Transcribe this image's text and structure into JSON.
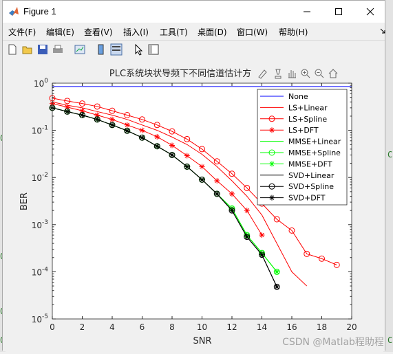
{
  "window": {
    "title": "Figure 1"
  },
  "menu": [
    "文件(F)",
    "编辑(E)",
    "查看(V)",
    "插入(I)",
    "工具(T)",
    "桌面(D)",
    "窗口(W)",
    "帮助(H)"
  ],
  "background_snippets": [
    "0",
    "0",
    "0",
    "0",
    "C",
    "C"
  ],
  "watermark": "CSDN @Matlab程助程",
  "chart_data": {
    "type": "line",
    "title": "PLC系统块状导频下不同信道估计方",
    "xlabel": "SNR",
    "ylabel": "BER",
    "xlim": [
      0,
      20
    ],
    "ylim": [
      1e-05,
      1
    ],
    "yscale": "log",
    "xticks": [
      "0",
      "2",
      "4",
      "6",
      "8",
      "10",
      "12",
      "14",
      "16",
      "18",
      "20"
    ],
    "yticks": [
      "10^0",
      "10^-1",
      "10^-2",
      "10^-3",
      "10^-4",
      "10^-5"
    ],
    "grid": false,
    "legend_position": "top-right",
    "series": [
      {
        "name": "None",
        "color": "#0000ff",
        "marker": "none",
        "x": [
          0,
          1,
          2,
          3,
          4,
          5,
          6,
          7,
          8,
          9,
          10,
          11,
          12,
          13,
          14,
          15,
          16,
          17,
          18,
          19,
          20
        ],
        "y": [
          0.85,
          0.85,
          0.85,
          0.85,
          0.85,
          0.85,
          0.85,
          0.85,
          0.85,
          0.85,
          0.85,
          0.85,
          0.85,
          0.85,
          0.85,
          0.85,
          0.85,
          0.85,
          0.85,
          0.85,
          0.85
        ]
      },
      {
        "name": "LS+Linear",
        "color": "#ff0000",
        "marker": "none",
        "x": [
          0,
          1,
          2,
          3,
          4,
          5,
          6,
          7,
          8,
          9,
          10,
          11,
          12,
          13,
          14,
          15,
          16,
          17
        ],
        "y": [
          0.4,
          0.34,
          0.3,
          0.25,
          0.21,
          0.17,
          0.13,
          0.1,
          0.072,
          0.05,
          0.031,
          0.017,
          0.0085,
          0.004,
          0.0016,
          0.0004,
          0.0001,
          5e-05
        ]
      },
      {
        "name": "LS+Spline",
        "color": "#ff0000",
        "marker": "o",
        "x": [
          0,
          1,
          2,
          3,
          4,
          5,
          6,
          7,
          8,
          9,
          10,
          11,
          12,
          13,
          14,
          15,
          16,
          17,
          18,
          19
        ],
        "y": [
          0.48,
          0.42,
          0.37,
          0.32,
          0.26,
          0.21,
          0.17,
          0.13,
          0.095,
          0.065,
          0.04,
          0.022,
          0.012,
          0.006,
          0.0028,
          0.0013,
          0.00075,
          0.00024,
          0.00019,
          0.00014
        ]
      },
      {
        "name": "LS+DFT",
        "color": "#ff0000",
        "marker": "*",
        "x": [
          0,
          1,
          2,
          3,
          4,
          5,
          6,
          7,
          8,
          9,
          10,
          11,
          12,
          13,
          14
        ],
        "y": [
          0.37,
          0.31,
          0.26,
          0.21,
          0.17,
          0.13,
          0.1,
          0.073,
          0.048,
          0.029,
          0.017,
          0.0085,
          0.0045,
          0.002,
          0.0006
        ]
      },
      {
        "name": "MMSE+Linear",
        "color": "#00ff00",
        "marker": "none",
        "x": [
          0,
          1,
          2,
          3,
          4,
          5,
          6,
          7,
          8,
          9,
          10,
          11,
          12,
          13,
          14,
          15
        ],
        "y": [
          0.3,
          0.25,
          0.21,
          0.17,
          0.13,
          0.098,
          0.07,
          0.046,
          0.03,
          0.017,
          0.009,
          0.0045,
          0.0022,
          0.0006,
          0.00025,
          0.0001
        ]
      },
      {
        "name": "MMSE+Spline",
        "color": "#00ff00",
        "marker": "o",
        "x": [
          0,
          1,
          2,
          3,
          4,
          5,
          6,
          7,
          8,
          9,
          10,
          11,
          12,
          13,
          14,
          15
        ],
        "y": [
          0.3,
          0.25,
          0.21,
          0.17,
          0.13,
          0.098,
          0.07,
          0.046,
          0.03,
          0.017,
          0.009,
          0.0045,
          0.0022,
          0.0006,
          0.00025,
          0.0001
        ]
      },
      {
        "name": "MMSE+DFT",
        "color": "#00ff00",
        "marker": "*",
        "x": [
          0,
          1,
          2,
          3,
          4,
          5,
          6,
          7,
          8,
          9,
          10,
          11,
          12,
          13,
          14,
          15
        ],
        "y": [
          0.3,
          0.25,
          0.21,
          0.17,
          0.13,
          0.098,
          0.07,
          0.046,
          0.03,
          0.017,
          0.009,
          0.0045,
          0.0022,
          0.0006,
          0.00025,
          0.0001
        ]
      },
      {
        "name": "SVD+Linear",
        "color": "#000000",
        "marker": "none",
        "x": [
          0,
          1,
          2,
          3,
          4,
          5,
          6,
          7,
          8,
          9,
          10,
          11,
          12,
          13,
          14,
          15
        ],
        "y": [
          0.3,
          0.25,
          0.21,
          0.17,
          0.13,
          0.098,
          0.07,
          0.046,
          0.03,
          0.017,
          0.009,
          0.0045,
          0.002,
          0.00055,
          0.00023,
          4.8e-05
        ]
      },
      {
        "name": "SVD+Spline",
        "color": "#000000",
        "marker": "o",
        "x": [
          0,
          1,
          2,
          3,
          4,
          5,
          6,
          7,
          8,
          9,
          10,
          11,
          12,
          13,
          14,
          15
        ],
        "y": [
          0.3,
          0.25,
          0.21,
          0.17,
          0.13,
          0.098,
          0.07,
          0.046,
          0.03,
          0.017,
          0.009,
          0.0045,
          0.002,
          0.00055,
          0.00023,
          4.8e-05
        ]
      },
      {
        "name": "SVD+DFT",
        "color": "#000000",
        "marker": "*",
        "x": [
          0,
          1,
          2,
          3,
          4,
          5,
          6,
          7,
          8,
          9,
          10,
          11,
          12,
          13,
          14,
          15
        ],
        "y": [
          0.3,
          0.25,
          0.21,
          0.17,
          0.13,
          0.098,
          0.07,
          0.046,
          0.03,
          0.017,
          0.009,
          0.0045,
          0.002,
          0.00055,
          0.00023,
          4.8e-05
        ]
      }
    ]
  }
}
